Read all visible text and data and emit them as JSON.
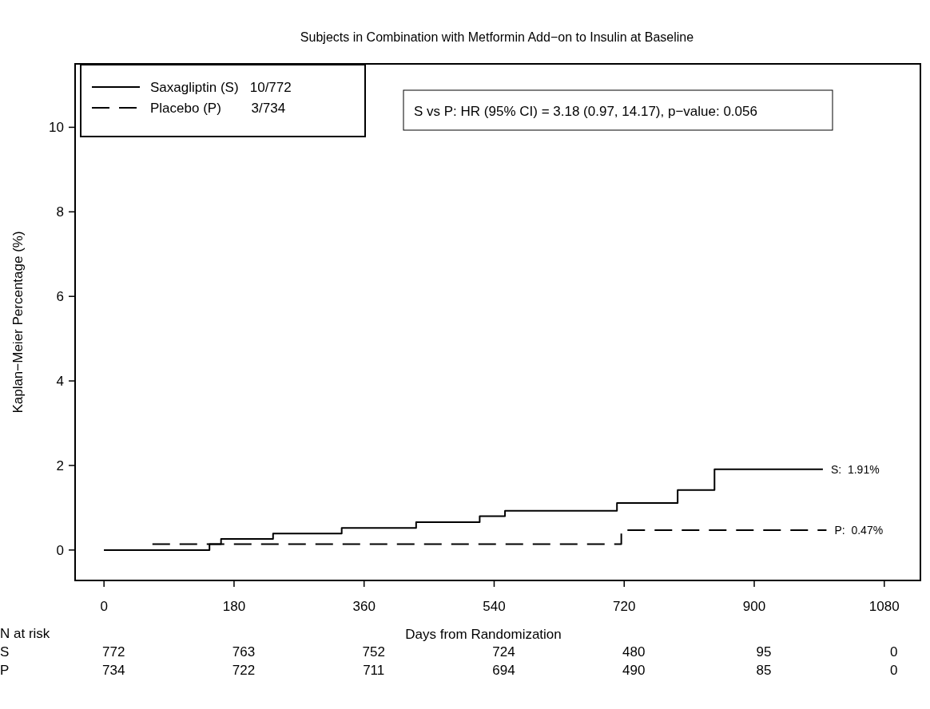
{
  "chart_data": {
    "type": "step",
    "title": "Subjects in Combination with Metformin Add−on to Insulin at Baseline",
    "xlabel": "Days from Randomization",
    "ylabel": "Kaplan−Meier Percentage (%)",
    "xlim": [
      -40,
      1130
    ],
    "ylim": [
      -0.72,
      11.5
    ],
    "xticks": [
      0,
      180,
      360,
      540,
      720,
      900,
      1080
    ],
    "yticks": [
      0,
      2,
      4,
      6,
      8,
      10
    ],
    "grid": false,
    "legend": "top left",
    "series": [
      {
        "name": "Saxagliptin (S)   10/772",
        "color": "#000000",
        "line_style": "solid",
        "x": [
          0,
          146,
          162,
          234,
          329,
          432,
          520,
          555,
          710,
          794,
          845,
          995
        ],
        "values": [
          0,
          0.14,
          0.26,
          0.39,
          0.52,
          0.66,
          0.8,
          0.93,
          1.11,
          1.42,
          1.91,
          1.91
        ]
      },
      {
        "name": "Placebo (P)        3/734",
        "color": "#000000",
        "line_style": "dashed",
        "x": [
          0,
          65,
          716,
          1000
        ],
        "values": [
          0,
          0.14,
          0.47,
          0.47
        ]
      }
    ],
    "annotations": [
      "S vs P: HR (95% CI) = 3.18 (0.97, 14.17), p−value: 0.056",
      {
        "text": "S:  1.91%",
        "x": 995,
        "y": 1.91
      },
      {
        "text": "P:  0.47%",
        "x": 1000,
        "y": 0.47
      },
      "N at risk",
      "S",
      "772",
      "763",
      "752",
      "724",
      "480",
      "95",
      "0",
      "P",
      "734",
      "722",
      "711",
      "694",
      "490",
      "85",
      "0"
    ]
  }
}
